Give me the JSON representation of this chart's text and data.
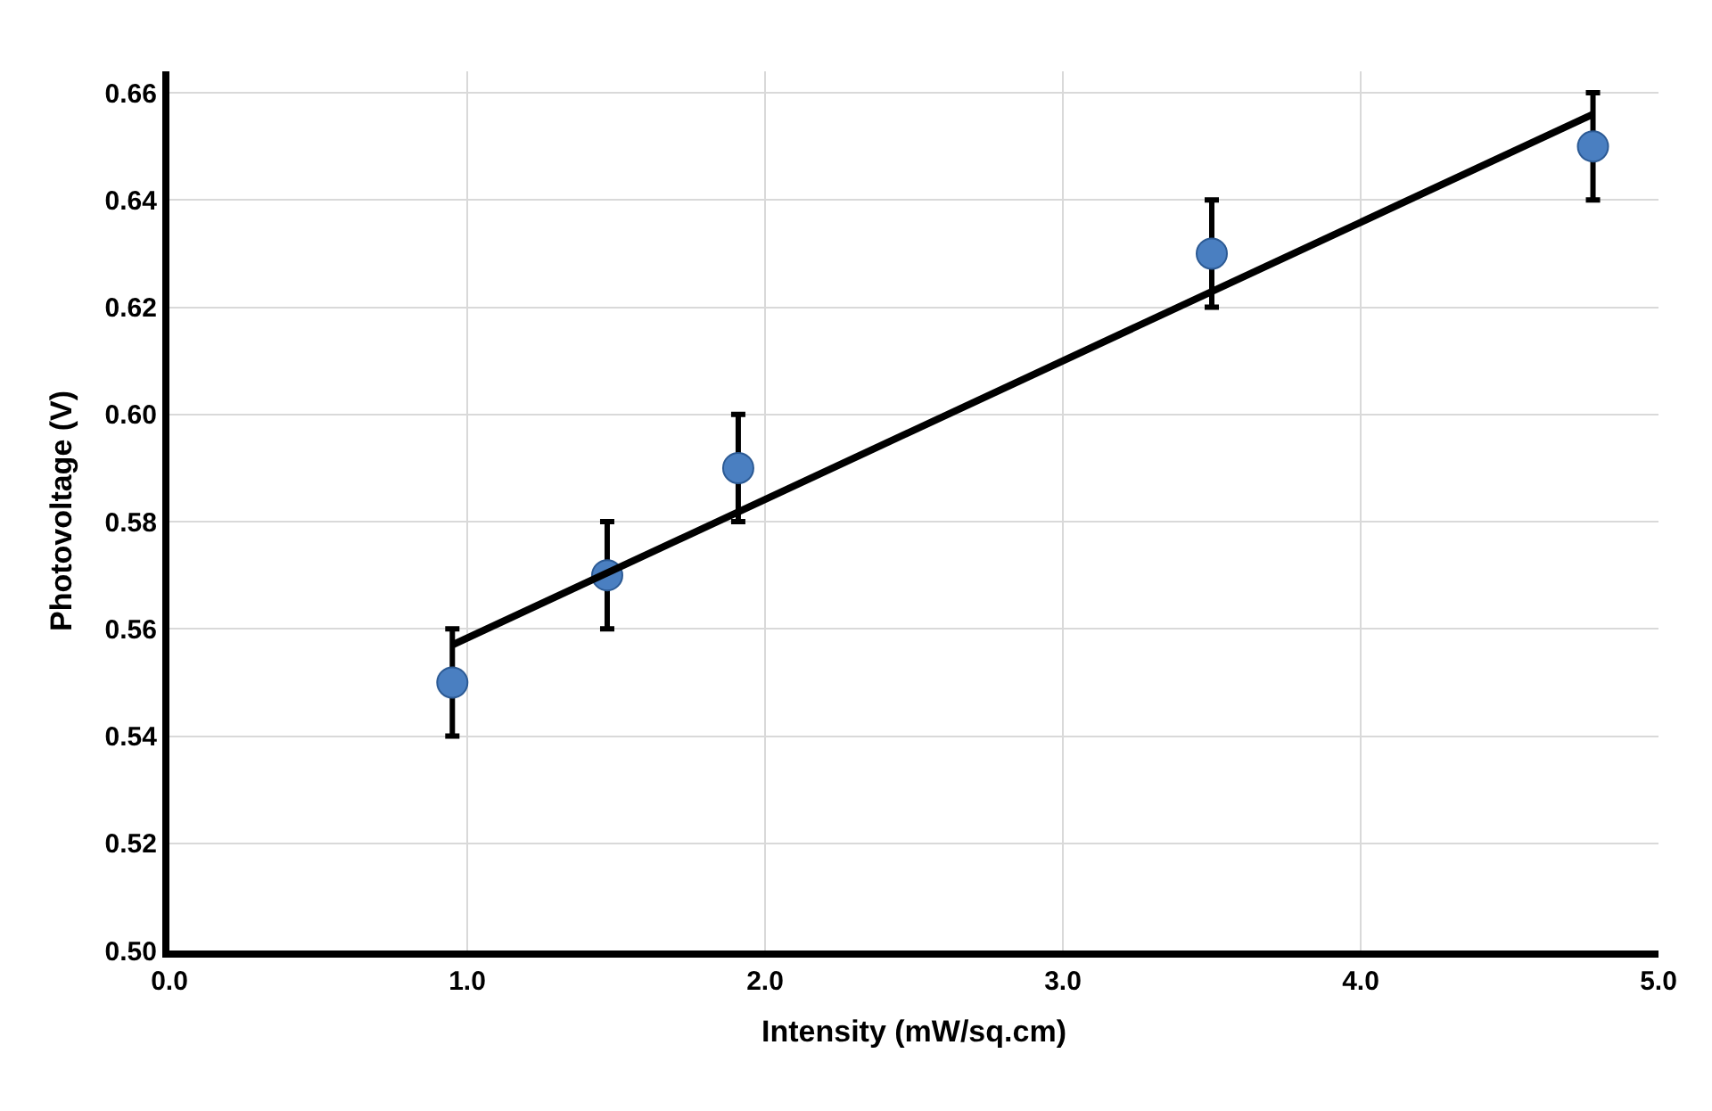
{
  "chart_data": {
    "type": "scatter",
    "xlabel": "Intensity (mW/sq.cm)",
    "ylabel": "Photovoltage (V)",
    "series": [
      {
        "color": "#4a7fc1",
        "x": [
          0.95,
          1.47,
          1.91,
          3.5,
          4.78
        ],
        "values": [
          0.55,
          0.57,
          0.59,
          0.63,
          0.65
        ],
        "errors": [
          0.01,
          0.01,
          0.01,
          0.01,
          0.01
        ],
        "marker": "circle"
      },
      {
        "type": "line",
        "color": "#000000",
        "x": [
          0.95,
          4.78
        ],
        "values": [
          0.557,
          0.656
        ],
        "marker": "none",
        "line_style": "solid"
      }
    ],
    "xlim": [
      0,
      5
    ],
    "ylim": [
      0.5,
      0.664
    ],
    "xticks": [
      {
        "value": 0,
        "label": "0.0"
      },
      {
        "value": 1,
        "label": "1.0"
      },
      {
        "value": 2,
        "label": "2.0"
      },
      {
        "value": 3,
        "label": "3.0"
      },
      {
        "value": 4,
        "label": "4.0"
      },
      {
        "value": 5,
        "label": "5.0"
      }
    ],
    "yticks": [
      {
        "value": 0.5,
        "label": "0.50"
      },
      {
        "value": 0.52,
        "label": "0.52"
      },
      {
        "value": 0.54,
        "label": "0.54"
      },
      {
        "value": 0.56,
        "label": "0.56"
      },
      {
        "value": 0.58,
        "label": "0.58"
      },
      {
        "value": 0.6,
        "label": "0.60"
      },
      {
        "value": 0.62,
        "label": "0.62"
      },
      {
        "value": 0.64,
        "label": "0.64"
      },
      {
        "value": 0.66,
        "label": "0.66"
      }
    ],
    "grid": true
  }
}
